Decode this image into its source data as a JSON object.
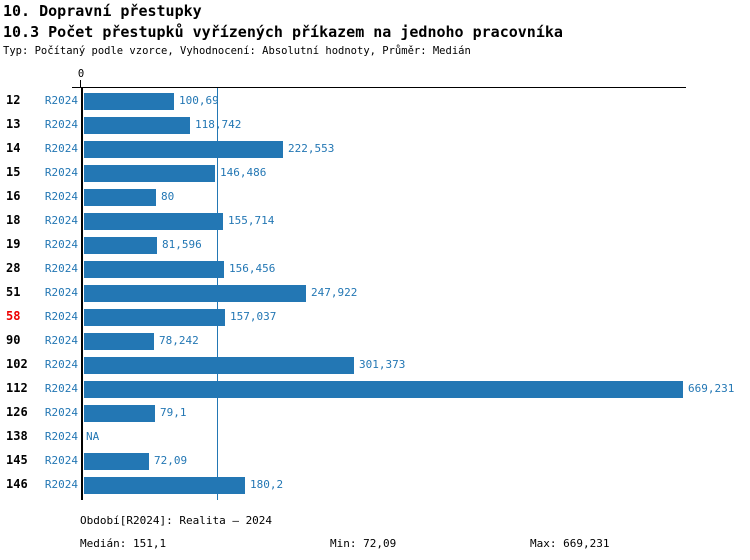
{
  "header": {
    "title1": "10. Dopravní přestupky",
    "title2": "10.3 Počet přestupků vyřízených příkazem na jednoho pracovníka",
    "subtitle": "Typ: Počítaný podle vzorce, Vyhodnocení: Absolutní hodnoty, Průměr: Medián"
  },
  "chart_data": {
    "type": "bar",
    "orientation": "horizontal",
    "title": "10.3 Počet přestupků vyřízených příkazem na jednoho pracovníka",
    "zero_tick_label": "0",
    "xmax": 669.231,
    "median_value": 151.1,
    "grid": false,
    "colors": {
      "bar": "#2377b4",
      "text_blue": "#2377b4",
      "median_line": "#2377b4",
      "highlight_red": "#ee0000",
      "axis": "#000000"
    },
    "rows": [
      {
        "id": "12",
        "period": "R2024",
        "value": 100.69,
        "label": "100,69",
        "highlight": false
      },
      {
        "id": "13",
        "period": "R2024",
        "value": 118.742,
        "label": "118,742",
        "highlight": false
      },
      {
        "id": "14",
        "period": "R2024",
        "value": 222.553,
        "label": "222,553",
        "highlight": false
      },
      {
        "id": "15",
        "period": "R2024",
        "value": 146.486,
        "label": "146,486",
        "highlight": false
      },
      {
        "id": "16",
        "period": "R2024",
        "value": 80,
        "label": "80",
        "highlight": false
      },
      {
        "id": "18",
        "period": "R2024",
        "value": 155.714,
        "label": "155,714",
        "highlight": false
      },
      {
        "id": "19",
        "period": "R2024",
        "value": 81.596,
        "label": "81,596",
        "highlight": false
      },
      {
        "id": "28",
        "period": "R2024",
        "value": 156.456,
        "label": "156,456",
        "highlight": false
      },
      {
        "id": "51",
        "period": "R2024",
        "value": 247.922,
        "label": "247,922",
        "highlight": false
      },
      {
        "id": "58",
        "period": "R2024",
        "value": 157.037,
        "label": "157,037",
        "highlight": true
      },
      {
        "id": "90",
        "period": "R2024",
        "value": 78.242,
        "label": "78,242",
        "highlight": false
      },
      {
        "id": "102",
        "period": "R2024",
        "value": 301.373,
        "label": "301,373",
        "highlight": false
      },
      {
        "id": "112",
        "period": "R2024",
        "value": 669.231,
        "label": "669,231",
        "highlight": false
      },
      {
        "id": "126",
        "period": "R2024",
        "value": 79.1,
        "label": "79,1",
        "highlight": false
      },
      {
        "id": "138",
        "period": "R2024",
        "value": null,
        "label": "NA",
        "highlight": false
      },
      {
        "id": "145",
        "period": "R2024",
        "value": 72.09,
        "label": "72,09",
        "highlight": false
      },
      {
        "id": "146",
        "period": "R2024",
        "value": 180.2,
        "label": "180,2",
        "highlight": false
      }
    ]
  },
  "footer": {
    "period_line": "Období[R2024]: Realita – 2024",
    "median": "Medián: 151,1",
    "min": "Min: 72,09",
    "max": "Max: 669,231"
  }
}
